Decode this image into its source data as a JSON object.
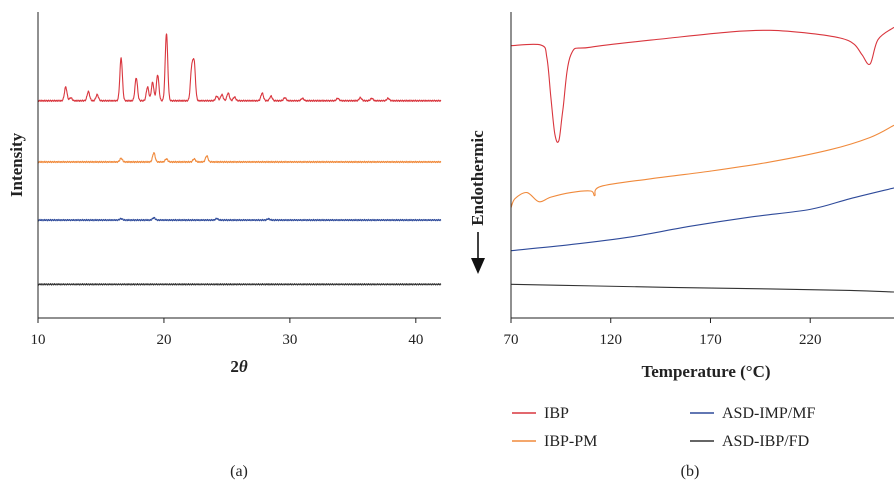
{
  "colors": {
    "IBP": "#d9363e",
    "IBP-PM": "#f08a3c",
    "ASD-IMP/MF": "#2e4a9a",
    "ASD-IBP/FD": "#333333"
  },
  "chart_data": [
    {
      "panel": "(a)",
      "type": "line",
      "xlabel": "2",
      "xlabel_italic": "θ",
      "ylabel": "Intensity",
      "xlim": [
        10,
        42
      ],
      "xticks": [
        10,
        20,
        30,
        40
      ],
      "y_ticks_labeled": false,
      "series": [
        {
          "name": "IBP",
          "baseline": 0.71,
          "peaks": [
            [
              12.2,
              0.045
            ],
            [
              12.6,
              0.01
            ],
            [
              14.0,
              0.03
            ],
            [
              14.7,
              0.02
            ],
            [
              16.6,
              0.14
            ],
            [
              17.8,
              0.075
            ],
            [
              18.7,
              0.045
            ],
            [
              19.1,
              0.06
            ],
            [
              19.5,
              0.085
            ],
            [
              20.2,
              0.22
            ],
            [
              22.2,
              0.1
            ],
            [
              22.4,
              0.12
            ],
            [
              24.2,
              0.015
            ],
            [
              24.6,
              0.02
            ],
            [
              25.1,
              0.025
            ],
            [
              25.6,
              0.012
            ],
            [
              27.8,
              0.025
            ],
            [
              28.5,
              0.015
            ],
            [
              29.6,
              0.01
            ],
            [
              31.0,
              0.008
            ],
            [
              33.8,
              0.008
            ],
            [
              35.6,
              0.01
            ],
            [
              36.5,
              0.008
            ],
            [
              37.8,
              0.008
            ]
          ]
        },
        {
          "name": "IBP-PM",
          "baseline": 0.51,
          "peaks": [
            [
              16.6,
              0.012
            ],
            [
              19.2,
              0.03
            ],
            [
              20.2,
              0.01
            ],
            [
              22.4,
              0.01
            ],
            [
              23.4,
              0.02
            ]
          ]
        },
        {
          "name": "ASD-IMP/MF",
          "baseline": 0.32,
          "peaks": [
            [
              16.6,
              0.005
            ],
            [
              19.2,
              0.008
            ],
            [
              24.2,
              0.005
            ],
            [
              28.3,
              0.004
            ]
          ]
        },
        {
          "name": "ASD-IBP/FD",
          "baseline": 0.11,
          "peaks": []
        }
      ]
    },
    {
      "panel": "(b)",
      "type": "line",
      "xlabel": "Temperature (°C)",
      "ylabel": "Endothermic",
      "ylabel_arrow": "down",
      "xlim": [
        70,
        262
      ],
      "xticks": [
        70,
        120,
        170,
        220
      ],
      "y_ticks_labeled": false,
      "series": [
        {
          "name": "IBP",
          "points": [
            [
              70,
              0.89
            ],
            [
              85,
              0.892
            ],
            [
              88,
              0.85
            ],
            [
              90,
              0.72
            ],
            [
              92,
              0.6
            ],
            [
              94,
              0.58
            ],
            [
              96,
              0.68
            ],
            [
              100,
              0.86
            ],
            [
              110,
              0.885
            ],
            [
              150,
              0.915
            ],
            [
              180,
              0.935
            ],
            [
              200,
              0.94
            ],
            [
              220,
              0.93
            ],
            [
              235,
              0.915
            ],
            [
              242,
              0.895
            ],
            [
              246,
              0.86
            ],
            [
              250,
              0.83
            ],
            [
              254,
              0.91
            ],
            [
              262,
              0.95
            ]
          ]
        },
        {
          "name": "IBP-PM",
          "points": [
            [
              70,
              0.36
            ],
            [
              72,
              0.39
            ],
            [
              78,
              0.41
            ],
            [
              84,
              0.38
            ],
            [
              90,
              0.395
            ],
            [
              100,
              0.41
            ],
            [
              110,
              0.415
            ],
            [
              112,
              0.4
            ],
            [
              115,
              0.43
            ],
            [
              140,
              0.455
            ],
            [
              170,
              0.48
            ],
            [
              200,
              0.51
            ],
            [
              230,
              0.55
            ],
            [
              250,
              0.59
            ],
            [
              262,
              0.63
            ]
          ]
        },
        {
          "name": "ASD-IMP/MF",
          "points": [
            [
              70,
              0.22
            ],
            [
              100,
              0.24
            ],
            [
              130,
              0.265
            ],
            [
              160,
              0.3
            ],
            [
              190,
              0.33
            ],
            [
              220,
              0.355
            ],
            [
              240,
              0.39
            ],
            [
              262,
              0.425
            ]
          ]
        },
        {
          "name": "ASD-IBP/FD",
          "points": [
            [
              70,
              0.11
            ],
            [
              110,
              0.105
            ],
            [
              150,
              0.1
            ],
            [
              200,
              0.095
            ],
            [
              240,
              0.09
            ],
            [
              262,
              0.085
            ]
          ]
        }
      ]
    }
  ],
  "legend": {
    "items": [
      {
        "label": "IBP",
        "series": "IBP"
      },
      {
        "label": "ASD-IMP/MF",
        "series": "ASD-IMP/MF"
      },
      {
        "label": "IBP-PM",
        "series": "IBP-PM"
      },
      {
        "label": "ASD-IBP/FD",
        "series": "ASD-IBP/FD"
      }
    ]
  }
}
